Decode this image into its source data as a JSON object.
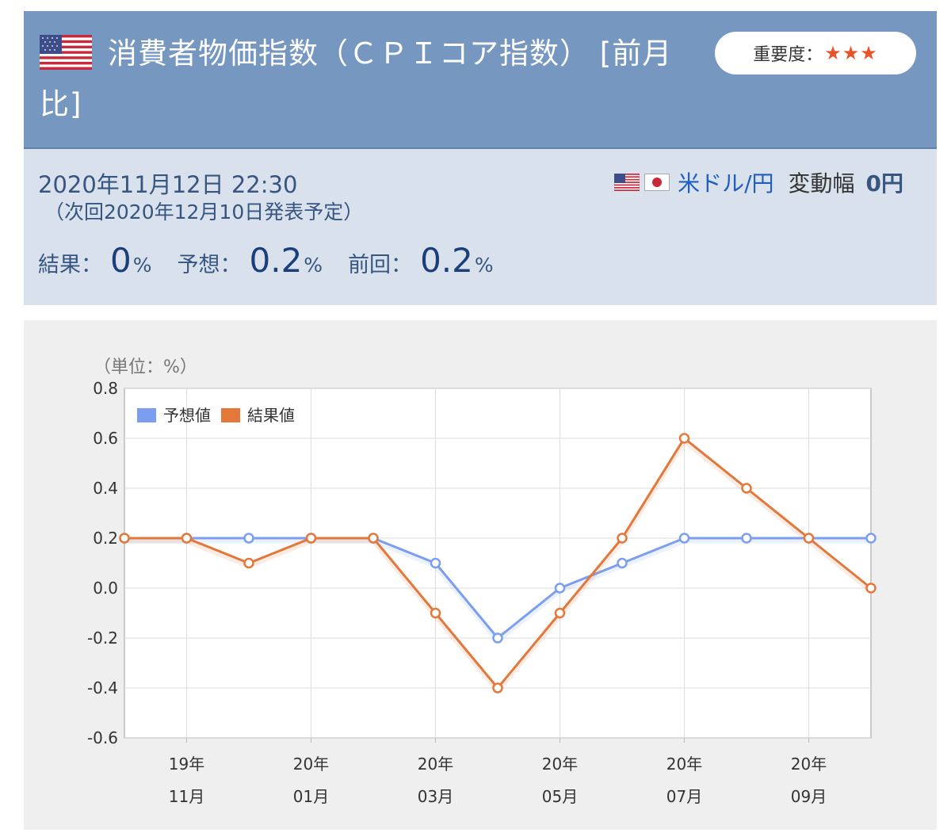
{
  "header": {
    "title": "消費者物価指数（ＣＰＩコア指数） [前月比]",
    "importance_label": "重要度：",
    "stars": "★★★"
  },
  "info": {
    "datetime": "2020年11月12日 22:30",
    "next_release": "（次回2020年12月10日発表予定）",
    "pair": "米ドル/円",
    "range_label": "変動幅",
    "range_value": "0円",
    "result_label": "結果：",
    "result_value": "0",
    "forecast_label": "予想：",
    "forecast_value": "0.2",
    "previous_label": "前回：",
    "previous_value": "0.2",
    "unit": "%"
  },
  "colors": {
    "header_bg": "#7597c0",
    "info_bg": "#d9e2ec",
    "forecast": "#7b9ef0",
    "result": "#e4783a",
    "stars": "#e8542a"
  },
  "chart_data": {
    "type": "line",
    "unit_label": "（単位：%）",
    "ylim": [
      -0.6,
      0.8
    ],
    "yticks": [
      "0.8",
      "0.6",
      "0.4",
      "0.2",
      "0.0",
      "-0.2",
      "-0.4",
      "-0.6"
    ],
    "x_labels": [
      {
        "year": "19年",
        "month": "11月",
        "index": 1
      },
      {
        "year": "20年",
        "month": "01月",
        "index": 3
      },
      {
        "year": "20年",
        "month": "03月",
        "index": 5
      },
      {
        "year": "20年",
        "month": "05月",
        "index": 7
      },
      {
        "year": "20年",
        "month": "07月",
        "index": 9
      },
      {
        "year": "20年",
        "month": "09月",
        "index": 11
      }
    ],
    "legend_placement": "top-left",
    "grid": true,
    "series": [
      {
        "name": "予想値",
        "color": "#7b9ef0",
        "values": [
          0.2,
          0.2,
          0.2,
          0.2,
          0.2,
          0.1,
          -0.2,
          0.0,
          0.1,
          0.2,
          0.2,
          0.2,
          0.2
        ]
      },
      {
        "name": "結果値",
        "color": "#e4783a",
        "values": [
          0.2,
          0.2,
          0.1,
          0.2,
          0.2,
          -0.1,
          -0.4,
          -0.1,
          0.2,
          0.6,
          0.4,
          0.2,
          0.0
        ]
      }
    ]
  }
}
